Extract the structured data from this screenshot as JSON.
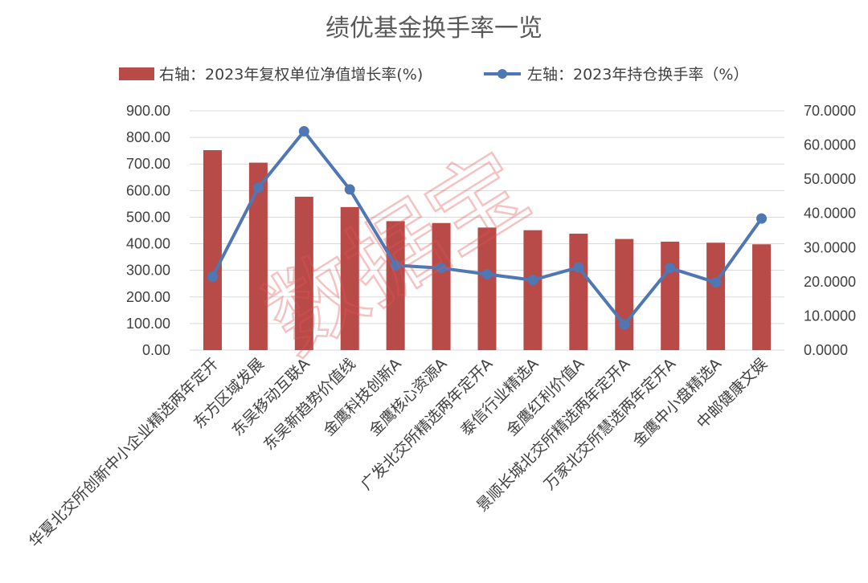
{
  "chart_data": {
    "type": "bar+line",
    "title": "绩优基金换手率一览",
    "categories": [
      "华夏北交所创新中小企业精选两年定开",
      "东方区域发展",
      "东吴移动互联A",
      "东吴新趋势价值线",
      "金鹰科技创新A",
      "金鹰核心资源A",
      "广发北交所精选两年定开A",
      "泰信行业精选A",
      "金鹰红利价值A",
      "景顺长城北交所精选两年定开A",
      "万家北交所慧选两年定开A",
      "金鹰中小盘精选A",
      "中邮健康文娱"
    ],
    "series": [
      {
        "name": "右轴：2023年复权单位净值增长率(%)",
        "type": "bar",
        "axis": "left",
        "color": "#b84a47",
        "values": [
          752,
          705,
          577,
          538,
          485,
          478,
          461,
          451,
          438,
          418,
          408,
          404,
          398
        ]
      },
      {
        "name": "左轴：2023年持仓换手率（%）",
        "type": "line",
        "axis": "right",
        "color": "#4f77b4",
        "values": [
          21.5,
          47.5,
          64.0,
          47.0,
          24.8,
          24.0,
          22.2,
          20.5,
          24.2,
          7.5,
          24.0,
          19.8,
          38.5
        ]
      }
    ],
    "y_left": {
      "min": 0,
      "max": 900,
      "step": 100,
      "ticks": [
        "0.00",
        "100.00",
        "200.00",
        "300.00",
        "400.00",
        "500.00",
        "600.00",
        "700.00",
        "800.00",
        "900.00"
      ]
    },
    "y_right": {
      "min": 0,
      "max": 70,
      "step": 10,
      "ticks": [
        "0.0000",
        "10.0000",
        "20.0000",
        "30.0000",
        "40.0000",
        "50.0000",
        "60.0000",
        "70.0000"
      ]
    },
    "grid": true,
    "legend_position": "top"
  },
  "watermark": "数据宝"
}
